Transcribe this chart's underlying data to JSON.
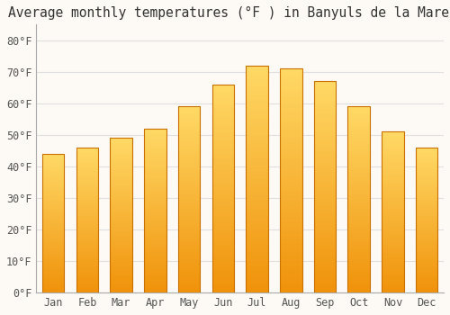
{
  "title": "Average monthly temperatures (°F ) in Banyuls de la Marenda",
  "months": [
    "Jan",
    "Feb",
    "Mar",
    "Apr",
    "May",
    "Jun",
    "Jul",
    "Aug",
    "Sep",
    "Oct",
    "Nov",
    "Dec"
  ],
  "values": [
    44,
    46,
    49,
    52,
    59,
    66,
    72,
    71,
    67,
    59,
    51,
    46
  ],
  "bar_color_bottom": "#F0920A",
  "bar_color_top": "#FFD966",
  "bar_border_color": "#C87000",
  "ylim": [
    0,
    85
  ],
  "yticks": [
    0,
    10,
    20,
    30,
    40,
    50,
    60,
    70,
    80
  ],
  "ytick_labels": [
    "0°F",
    "10°F",
    "20°F",
    "30°F",
    "40°F",
    "50°F",
    "60°F",
    "70°F",
    "80°F"
  ],
  "background_color": "#FDFAF5",
  "grid_color": "#E0E0E0",
  "font_family": "monospace",
  "title_fontsize": 10.5,
  "tick_fontsize": 8.5,
  "bar_width": 0.65,
  "n_gradient_steps": 100
}
